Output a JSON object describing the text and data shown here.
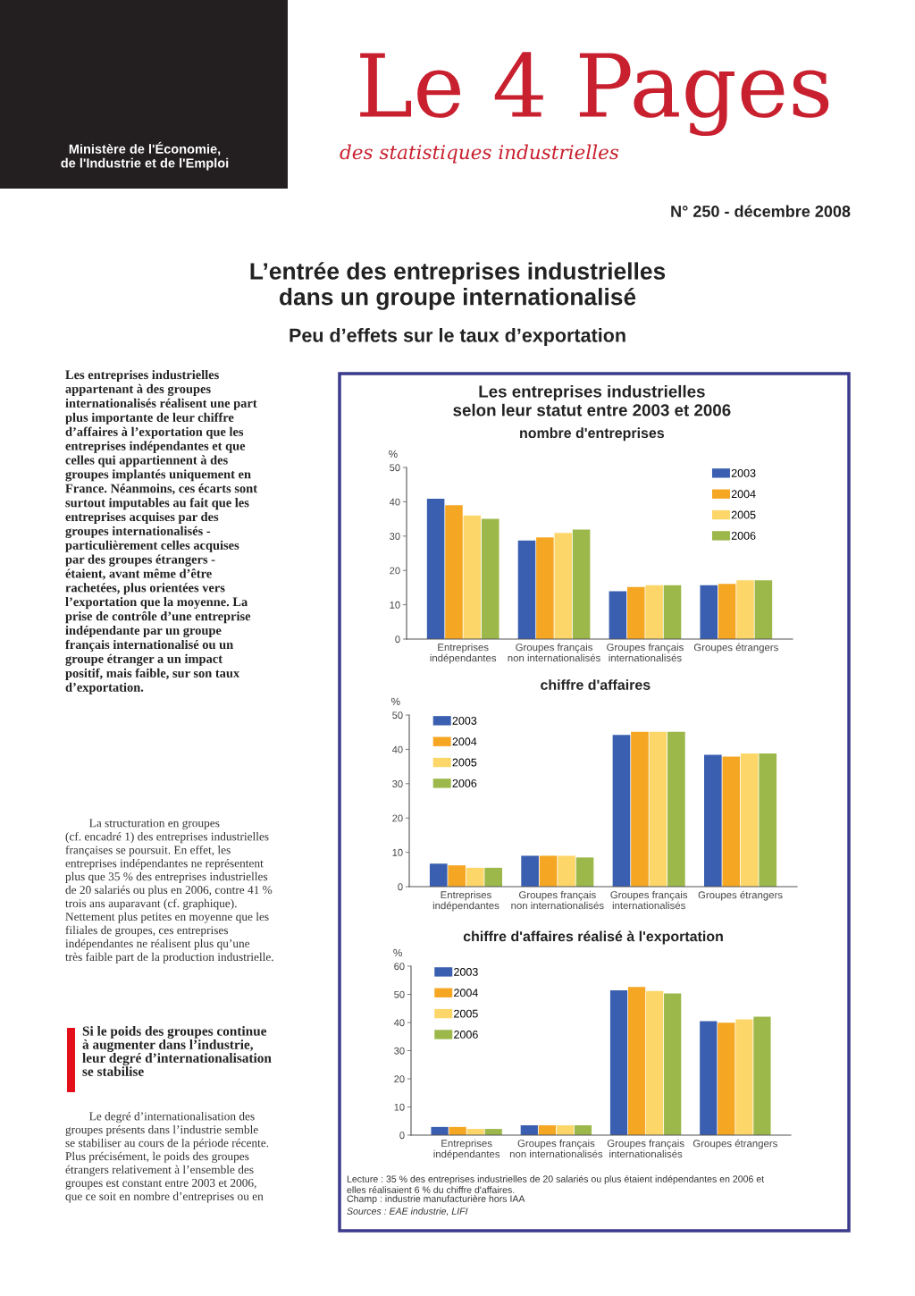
{
  "chart_data": [
    {
      "type": "bar",
      "title": "Les entreprises industrielles\nselon leur statut entre 2003 et 2006",
      "subtitle": "nombre d'entreprises",
      "ylabel": "%",
      "categories": [
        "Entreprises\nindépendantes",
        "Groupes français\nnon internationalisés",
        "Groupes français\ninternationalisés",
        "Groupes étrangers"
      ],
      "series": [
        {
          "name": "2003",
          "color": "#3a5fb0",
          "values": [
            40.9,
            28.7,
            13.9,
            15.7
          ]
        },
        {
          "name": "2004",
          "color": "#f5a623",
          "values": [
            39,
            29.6,
            15.2,
            16.1
          ]
        },
        {
          "name": "2005",
          "color": "#fdd66a",
          "values": [
            36,
            30.9,
            15.7,
            17.1
          ]
        },
        {
          "name": "2006",
          "color": "#9cb84a",
          "values": [
            35,
            31.9,
            15.7,
            17.1
          ]
        }
      ],
      "ylim": [
        0,
        50
      ],
      "yticks": [
        0,
        10,
        20,
        30,
        40,
        50
      ],
      "grid": false,
      "legend": "top right",
      "annotations": [
        "Ministère de l'Économie,\nde l'Industrie et de l'Emploi",
        "Le 4 Pages",
        "des statistiques industrielles",
        "N° 250 - décembre 2008",
        "L’entrée des entreprises industrielles\ndans un groupe internationalisé",
        "Peu d’effets sur le taux d’exportation",
        "Les entreprises industrielles\nappartenant à des groupes\ninternationalisés réalisent une part\nplus importante de leur chiffre\nd’affaires à l’exportation que les\nentreprises indépendantes et que\ncelles qui appartiennent à des\ngroupes implantés uniquement en\nFrance. Néanmoins, ces écarts sont\nsurtout imputables au fait que les\nentreprises acquises par des\ngroupes internationalisés -\nparticulièrement celles acquises\npar des groupes étrangers -\nétaient, avant même d’être\nrachetées, plus orientées vers\nl’exportation que la moyenne. La\nprise de contrôle d’une entreprise\nindépendante par un groupe\nfrançais internationalisé ou un\ngroupe étranger a un impact\npositif, mais faible, sur son taux\nd’exportation.",
        "        La structuration en groupes\n(cf. encadré 1) des entreprises industrielles\nfrançaises se poursuit. En effet, les\nentreprises indépendantes ne représentent\nplus que 35 % des entreprises industrielles\nde 20 salariés ou plus en 2006, contre 41 %\ntrois ans auparavant (cf. graphique).\nNettement plus petites en moyenne que les\nfiliales de groupes, ces entreprises\nindépendantes ne réalisent plus qu’une\ntrès faible part de la production industrielle.",
        "Si le poids des groupes continue\nà augmenter dans l’industrie,\nleur degré d’internationalisation\nse stabilise",
        "        Le degré d’internationalisation des\ngroupes présents dans l’industrie semble\nse stabiliser au cours de la période récente.\nPlus précisément, le poids des groupes\nétrangers relativement à l’ensemble des\ngroupes est constant entre 2003 et 2006,\nque ce soit en nombre d’entreprises ou en"
      ]
    },
    {
      "type": "bar",
      "title": "chiffre d'affaires",
      "ylabel": "%",
      "categories": [
        "Entreprises\nindépendantes",
        "Groupes français\nnon internationalisés",
        "Groupes français\ninternationalisés",
        "Groupes étrangers"
      ],
      "series": [
        {
          "name": "2003",
          "color": "#3a5fb0",
          "values": [
            6.7,
            9.0,
            44.2,
            38.4
          ]
        },
        {
          "name": "2004",
          "color": "#f5a623",
          "values": [
            6.2,
            9.0,
            45.1,
            37.9
          ]
        },
        {
          "name": "2005",
          "color": "#fdd66a",
          "values": [
            5.5,
            9.0,
            45.1,
            38.8
          ]
        },
        {
          "name": "2006",
          "color": "#9cb84a",
          "values": [
            5.5,
            8.5,
            45.1,
            38.8
          ]
        }
      ],
      "ylim": [
        0,
        50
      ],
      "yticks": [
        0,
        10,
        20,
        30,
        40,
        50
      ],
      "grid": false,
      "legend": "top left"
    },
    {
      "type": "bar",
      "title": "chiffre d'affaires réalisé à l'exportation",
      "ylabel": "%",
      "categories": [
        "Entreprises\nindépendantes",
        "Groupes français\nnon internationalisés",
        "Groupes français\ninternationalisés",
        "Groupes étrangers"
      ],
      "series": [
        {
          "name": "2003",
          "color": "#3a5fb0",
          "values": [
            2.9,
            3.5,
            51.4,
            40.5
          ]
        },
        {
          "name": "2004",
          "color": "#f5a623",
          "values": [
            2.9,
            3.5,
            52.6,
            39.9
          ]
        },
        {
          "name": "2005",
          "color": "#fdd66a",
          "values": [
            2.2,
            3.5,
            51.2,
            41.1
          ]
        },
        {
          "name": "2006",
          "color": "#9cb84a",
          "values": [
            2.2,
            3.5,
            50.3,
            42.1
          ]
        }
      ],
      "ylim": [
        0,
        60
      ],
      "yticks": [
        0,
        10,
        20,
        30,
        40,
        50,
        60
      ],
      "grid": false,
      "legend": "top left",
      "annotations": [
        "Lecture : 35 % des entreprises industrielles de 20 salariés ou plus étaient indépendantes en 2006 et\nelles réalisaient 6 % du chiffre d'affaires.",
        "Champ : industrie manufacturière hors IAA",
        "Sources : EAE industrie, LIFI"
      ]
    }
  ]
}
